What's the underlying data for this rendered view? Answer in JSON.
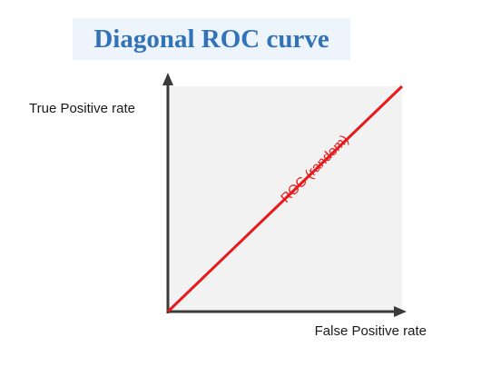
{
  "chart_data": {
    "type": "line",
    "title": "Diagonal ROC curve",
    "xlabel": "False Positive rate",
    "ylabel": "True Positive rate",
    "xlim": [
      0,
      1
    ],
    "ylim": [
      0,
      1
    ],
    "grid": false,
    "series": [
      {
        "name": "ROC (random)",
        "x": [
          0,
          1
        ],
        "y": [
          0,
          1
        ],
        "color": "#e8191a"
      }
    ],
    "plot_background": "#f2f2f2",
    "axis_color": "#3a3a3a",
    "title_color": "#3272b8"
  }
}
